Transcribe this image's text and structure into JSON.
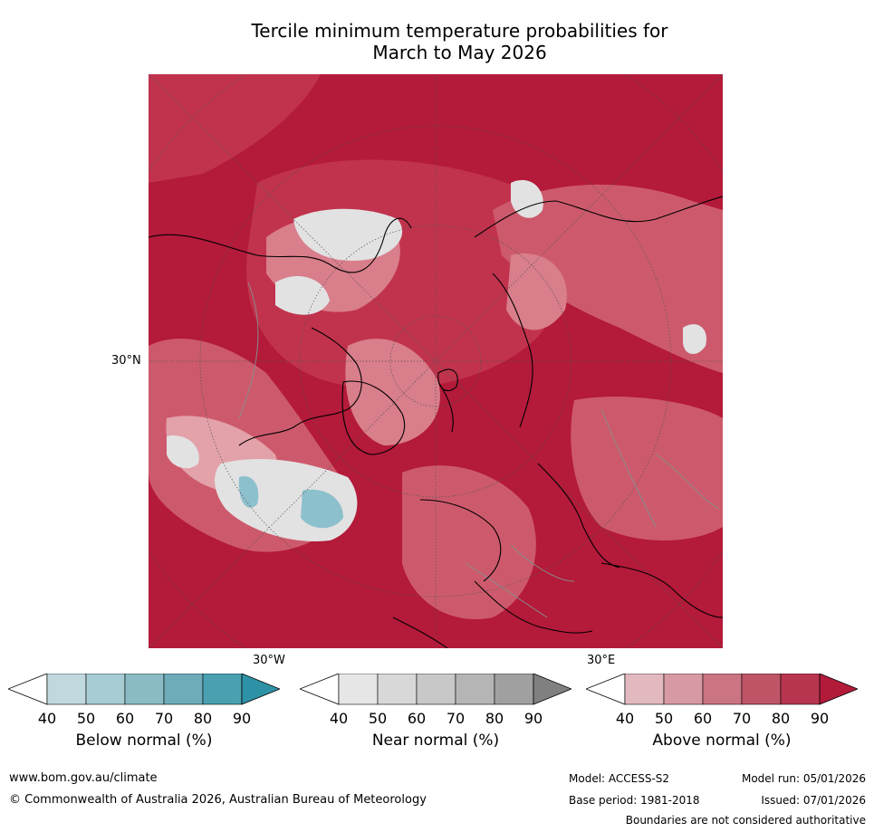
{
  "title_line1": "Tercile minimum temperature probabilities for",
  "title_line2": "March to May 2026",
  "map": {
    "lat_label": "30°N",
    "lon_labels": [
      "30°W",
      "30°E"
    ],
    "colors": {
      "above_90": "#b41a3a",
      "above_80": "#c1334d",
      "above_70": "#cd5a6c",
      "above_60": "#d97e8b",
      "above_50": "#e3a1aa",
      "near": "#e2e2e2",
      "below": "#8cc0cc",
      "coast": "#000000",
      "border": "#8a8a8a",
      "grid": "#555555"
    }
  },
  "legends": [
    {
      "label": "Below normal (%)",
      "ticks": [
        "40",
        "50",
        "60",
        "70",
        "80",
        "90"
      ],
      "colors": [
        "#ffffff",
        "#c0d9df",
        "#a7ccd4",
        "#8bbcc6",
        "#6eacba",
        "#4aa0b0",
        "#2e92a6"
      ]
    },
    {
      "label": "Near normal (%)",
      "ticks": [
        "40",
        "50",
        "60",
        "70",
        "80",
        "90"
      ],
      "colors": [
        "#ffffff",
        "#e6e6e6",
        "#d8d8d8",
        "#c8c8c8",
        "#b5b5b5",
        "#a0a0a0",
        "#808080"
      ]
    },
    {
      "label": "Above normal (%)",
      "ticks": [
        "40",
        "50",
        "60",
        "70",
        "80",
        "90"
      ],
      "colors": [
        "#ffffff",
        "#e2b9bf",
        "#d79aa3",
        "#cb7482",
        "#c05467",
        "#b8354f",
        "#b21b3a"
      ]
    }
  ],
  "footer": {
    "website": "www.bom.gov.au/climate",
    "copyright": "© Commonwealth of Australia 2026, Australian Bureau of Meteorology",
    "model": "Model: ACCESS-S2",
    "model_run": "Model run: 05/01/2026",
    "base_period": "Base period: 1981-2018",
    "issued": "Issued: 07/01/2026",
    "disclaimer": "Boundaries are not considered authoritative"
  }
}
